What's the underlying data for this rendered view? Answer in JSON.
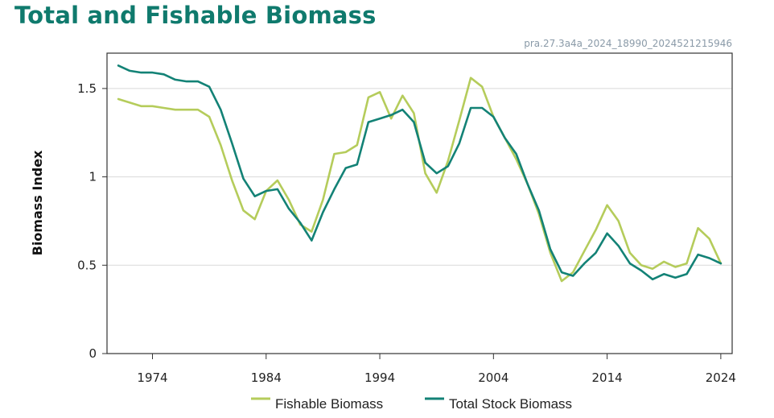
{
  "header": {
    "title": "Total and Fishable Biomass",
    "subtitle": "pra.27.3a4a_2024_18990_2024521215946"
  },
  "colors": {
    "fishable": "#b5cc5b",
    "total": "#138276",
    "title": "#0f7a6d",
    "grid": "#d9d9d9"
  },
  "chart_data": {
    "type": "line",
    "title": "Total and Fishable Biomass",
    "xlabel": "",
    "ylabel": "Biomass Index",
    "xlim": [
      1970,
      2025
    ],
    "ylim": [
      0,
      1.7
    ],
    "x_ticks": [
      1974,
      1984,
      1994,
      2004,
      2014,
      2024
    ],
    "x_tick_labels": [
      "1974",
      "1984",
      "1994",
      "2004",
      "2014",
      "2024"
    ],
    "y_ticks": [
      0,
      0.5,
      1,
      1.5
    ],
    "y_tick_labels": [
      "0",
      "0.5",
      "1",
      "1.5"
    ],
    "grid": "horizontal",
    "legend_position": "bottom",
    "x": [
      1971,
      1972,
      1973,
      1974,
      1975,
      1976,
      1977,
      1978,
      1979,
      1980,
      1981,
      1982,
      1983,
      1984,
      1985,
      1986,
      1987,
      1988,
      1989,
      1990,
      1991,
      1992,
      1993,
      1994,
      1995,
      1996,
      1997,
      1998,
      1999,
      2000,
      2001,
      2002,
      2003,
      2004,
      2005,
      2006,
      2007,
      2008,
      2009,
      2010,
      2011,
      2012,
      2013,
      2014,
      2015,
      2016,
      2017,
      2018,
      2019,
      2020,
      2021,
      2022,
      2023,
      2024
    ],
    "series": [
      {
        "name": "Fishable Biomass",
        "values": [
          1.44,
          1.42,
          1.4,
          1.4,
          1.39,
          1.38,
          1.38,
          1.38,
          1.34,
          1.18,
          0.98,
          0.81,
          0.76,
          0.92,
          0.98,
          0.87,
          0.73,
          0.69,
          0.87,
          1.13,
          1.14,
          1.18,
          1.45,
          1.48,
          1.33,
          1.46,
          1.36,
          1.02,
          0.91,
          1.09,
          1.32,
          1.56,
          1.51,
          1.34,
          1.22,
          1.1,
          0.96,
          0.79,
          0.57,
          0.41,
          0.46,
          0.58,
          0.7,
          0.84,
          0.75,
          0.57,
          0.5,
          0.48,
          0.52,
          0.49,
          0.51,
          0.71,
          0.65,
          0.51
        ]
      },
      {
        "name": "Total Stock Biomass",
        "values": [
          1.63,
          1.6,
          1.59,
          1.59,
          1.58,
          1.55,
          1.54,
          1.54,
          1.51,
          1.38,
          1.19,
          0.99,
          0.89,
          0.92,
          0.93,
          0.82,
          0.74,
          0.64,
          0.8,
          0.93,
          1.05,
          1.07,
          1.31,
          1.33,
          1.35,
          1.38,
          1.31,
          1.08,
          1.02,
          1.06,
          1.19,
          1.39,
          1.39,
          1.34,
          1.22,
          1.13,
          0.96,
          0.81,
          0.59,
          0.46,
          0.44,
          0.51,
          0.57,
          0.68,
          0.61,
          0.51,
          0.47,
          0.42,
          0.45,
          0.43,
          0.45,
          0.56,
          0.54,
          0.51
        ]
      }
    ]
  }
}
